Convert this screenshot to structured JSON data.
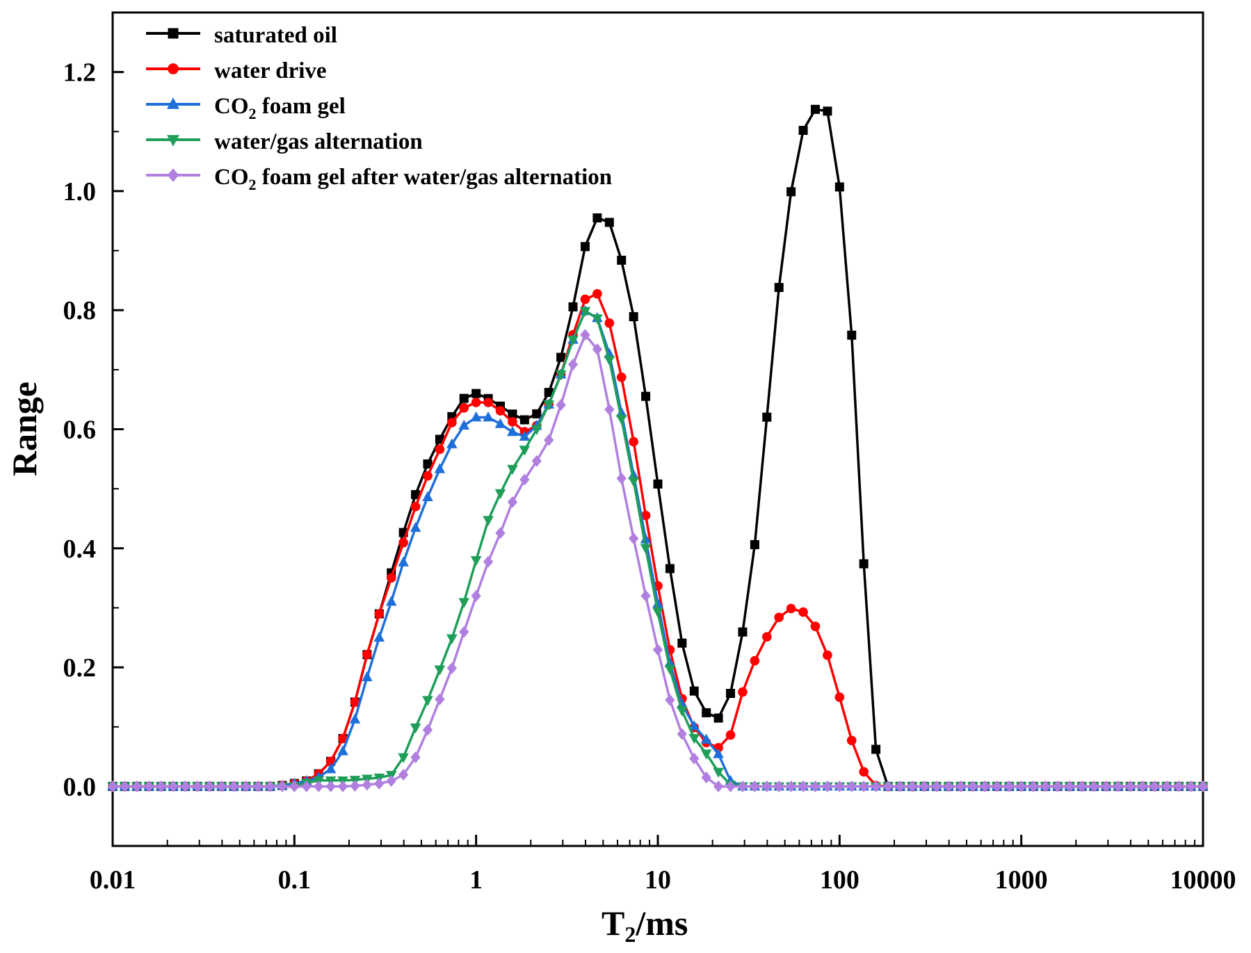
{
  "chart_data": {
    "type": "line",
    "title": "",
    "xlabel": "T2/ms",
    "xlabel_main": "T",
    "xlabel_sub": "2",
    "xlabel_rest": "/ms",
    "ylabel": "Range",
    "xscale": "log",
    "xlim": [
      0.01,
      10000
    ],
    "ylim": [
      -0.1,
      1.3
    ],
    "x_ticks": [
      0.01,
      0.1,
      1,
      10,
      100,
      1000,
      10000
    ],
    "x_tick_labels": [
      "0.01",
      "0.1",
      "1",
      "10",
      "100",
      "1000",
      "10000"
    ],
    "y_ticks": [
      0.0,
      0.2,
      0.4,
      0.6,
      0.8,
      1.0,
      1.2
    ],
    "y_tick_labels": [
      "0.0",
      "0.2",
      "0.4",
      "0.6",
      "0.8",
      "1.0",
      "1.2"
    ],
    "legend_position": "top-left",
    "series": [
      {
        "name": "saturated oil",
        "legend_main": "saturated oil",
        "legend_sub": "",
        "legend_rest": "",
        "color": "#000000",
        "marker": "square",
        "points": [
          [
            0.08,
            0.0
          ],
          [
            0.1,
            0.005
          ],
          [
            0.12,
            0.01
          ],
          [
            0.15,
            0.03
          ],
          [
            0.18,
            0.07
          ],
          [
            0.22,
            0.15
          ],
          [
            0.26,
            0.24
          ],
          [
            0.3,
            0.3
          ],
          [
            0.35,
            0.37
          ],
          [
            0.42,
            0.45
          ],
          [
            0.5,
            0.52
          ],
          [
            0.6,
            0.57
          ],
          [
            0.7,
            0.61
          ],
          [
            0.8,
            0.64
          ],
          [
            0.9,
            0.66
          ],
          [
            1.0,
            0.66
          ],
          [
            1.2,
            0.65
          ],
          [
            1.5,
            0.63
          ],
          [
            1.8,
            0.615
          ],
          [
            2.1,
            0.62
          ],
          [
            2.5,
            0.66
          ],
          [
            3.0,
            0.73
          ],
          [
            3.5,
            0.82
          ],
          [
            4.0,
            0.91
          ],
          [
            4.6,
            0.955
          ],
          [
            5.3,
            0.955
          ],
          [
            6.0,
            0.91
          ],
          [
            7.0,
            0.83
          ],
          [
            8.0,
            0.72
          ],
          [
            9.2,
            0.59
          ],
          [
            10.5,
            0.46
          ],
          [
            12.0,
            0.34
          ],
          [
            13.5,
            0.245
          ],
          [
            15.0,
            0.18
          ],
          [
            17.0,
            0.135
          ],
          [
            19.0,
            0.12
          ],
          [
            21.0,
            0.11
          ],
          [
            24.0,
            0.135
          ],
          [
            27.0,
            0.19
          ],
          [
            30.0,
            0.28
          ],
          [
            34.0,
            0.4
          ],
          [
            38.0,
            0.56
          ],
          [
            43.0,
            0.72
          ],
          [
            48.0,
            0.89
          ],
          [
            56.0,
            1.03
          ],
          [
            65.0,
            1.12
          ],
          [
            75.0,
            1.14
          ],
          [
            85.0,
            1.14
          ],
          [
            95.0,
            1.07
          ],
          [
            110.0,
            0.89
          ],
          [
            125.0,
            0.6
          ],
          [
            145.0,
            0.2
          ],
          [
            165.0,
            0.0
          ],
          [
            10000,
            0.0
          ]
        ]
      },
      {
        "name": "water drive",
        "legend_main": "water drive",
        "legend_sub": "",
        "legend_rest": "",
        "color": "#ff0000",
        "marker": "circle",
        "points": [
          [
            0.08,
            0.0
          ],
          [
            0.1,
            0.005
          ],
          [
            0.12,
            0.01
          ],
          [
            0.15,
            0.03
          ],
          [
            0.18,
            0.07
          ],
          [
            0.22,
            0.15
          ],
          [
            0.26,
            0.24
          ],
          [
            0.3,
            0.3
          ],
          [
            0.35,
            0.36
          ],
          [
            0.42,
            0.43
          ],
          [
            0.5,
            0.5
          ],
          [
            0.6,
            0.55
          ],
          [
            0.7,
            0.6
          ],
          [
            0.8,
            0.63
          ],
          [
            0.9,
            0.64
          ],
          [
            1.0,
            0.645
          ],
          [
            1.2,
            0.645
          ],
          [
            1.5,
            0.62
          ],
          [
            1.8,
            0.595
          ],
          [
            2.1,
            0.6
          ],
          [
            2.5,
            0.64
          ],
          [
            3.0,
            0.7
          ],
          [
            3.5,
            0.77
          ],
          [
            4.0,
            0.82
          ],
          [
            4.6,
            0.83
          ],
          [
            5.3,
            0.79
          ],
          [
            6.0,
            0.72
          ],
          [
            7.0,
            0.62
          ],
          [
            8.0,
            0.51
          ],
          [
            9.2,
            0.4
          ],
          [
            10.5,
            0.3
          ],
          [
            12.0,
            0.21
          ],
          [
            13.5,
            0.15
          ],
          [
            15.0,
            0.11
          ],
          [
            17.0,
            0.085
          ],
          [
            19.0,
            0.07
          ],
          [
            21.0,
            0.065
          ],
          [
            24.0,
            0.065
          ],
          [
            27.0,
            0.12
          ],
          [
            30.0,
            0.17
          ],
          [
            34.0,
            0.21
          ],
          [
            38.0,
            0.24
          ],
          [
            43.0,
            0.27
          ],
          [
            48.0,
            0.29
          ],
          [
            55.0,
            0.3
          ],
          [
            62.0,
            0.295
          ],
          [
            70.0,
            0.28
          ],
          [
            80.0,
            0.25
          ],
          [
            90.0,
            0.2
          ],
          [
            100.0,
            0.15
          ],
          [
            110.0,
            0.1
          ],
          [
            125.0,
            0.05
          ],
          [
            145.0,
            0.005
          ],
          [
            165.0,
            0.0
          ],
          [
            10000,
            0.0
          ]
        ]
      },
      {
        "name": "CO2 foam gel",
        "legend_main": "CO",
        "legend_sub": "2",
        "legend_rest": " foam gel",
        "color": "#1f6fd8",
        "marker": "triangle-up",
        "points": [
          [
            0.08,
            0.0
          ],
          [
            0.1,
            0.005
          ],
          [
            0.12,
            0.01
          ],
          [
            0.15,
            0.02
          ],
          [
            0.18,
            0.05
          ],
          [
            0.22,
            0.12
          ],
          [
            0.26,
            0.2
          ],
          [
            0.3,
            0.26
          ],
          [
            0.35,
            0.32
          ],
          [
            0.42,
            0.4
          ],
          [
            0.5,
            0.46
          ],
          [
            0.6,
            0.52
          ],
          [
            0.7,
            0.56
          ],
          [
            0.8,
            0.6
          ],
          [
            1.0,
            0.62
          ],
          [
            1.2,
            0.62
          ],
          [
            1.5,
            0.6
          ],
          [
            1.8,
            0.585
          ],
          [
            2.1,
            0.6
          ],
          [
            2.5,
            0.64
          ],
          [
            3.0,
            0.7
          ],
          [
            3.5,
            0.76
          ],
          [
            4.0,
            0.8
          ],
          [
            4.6,
            0.79
          ],
          [
            5.3,
            0.74
          ],
          [
            6.0,
            0.66
          ],
          [
            7.0,
            0.56
          ],
          [
            8.0,
            0.46
          ],
          [
            9.2,
            0.37
          ],
          [
            10.5,
            0.27
          ],
          [
            12.0,
            0.19
          ],
          [
            13.5,
            0.14
          ],
          [
            15.0,
            0.11
          ],
          [
            17.0,
            0.09
          ],
          [
            19.0,
            0.075
          ],
          [
            21.0,
            0.06
          ],
          [
            23.0,
            0.04
          ],
          [
            25.0,
            0.01
          ],
          [
            28.0,
            0.0
          ],
          [
            10000,
            0.0
          ]
        ]
      },
      {
        "name": "water/gas alternation",
        "legend_main": "water/gas alternation",
        "legend_sub": "",
        "legend_rest": "",
        "color": "#1f9e5a",
        "marker": "triangle-down",
        "points": [
          [
            0.1,
            0.0
          ],
          [
            0.13,
            0.01
          ],
          [
            0.2,
            0.01
          ],
          [
            0.3,
            0.015
          ],
          [
            0.35,
            0.02
          ],
          [
            0.4,
            0.05
          ],
          [
            0.45,
            0.09
          ],
          [
            0.5,
            0.12
          ],
          [
            0.55,
            0.15
          ],
          [
            0.6,
            0.18
          ],
          [
            0.7,
            0.23
          ],
          [
            0.8,
            0.28
          ],
          [
            0.9,
            0.33
          ],
          [
            1.0,
            0.38
          ],
          [
            1.1,
            0.43
          ],
          [
            1.3,
            0.48
          ],
          [
            1.5,
            0.52
          ],
          [
            1.7,
            0.55
          ],
          [
            2.0,
            0.58
          ],
          [
            2.5,
            0.64
          ],
          [
            3.0,
            0.7
          ],
          [
            3.5,
            0.76
          ],
          [
            4.0,
            0.8
          ],
          [
            4.6,
            0.79
          ],
          [
            5.3,
            0.73
          ],
          [
            6.0,
            0.65
          ],
          [
            7.0,
            0.55
          ],
          [
            8.0,
            0.45
          ],
          [
            9.2,
            0.35
          ],
          [
            10.5,
            0.26
          ],
          [
            12.0,
            0.18
          ],
          [
            13.5,
            0.13
          ],
          [
            15.0,
            0.09
          ],
          [
            17.0,
            0.07
          ],
          [
            19.0,
            0.05
          ],
          [
            21.0,
            0.03
          ],
          [
            23.0,
            0.01
          ],
          [
            26.0,
            0.0
          ],
          [
            10000,
            0.0
          ]
        ]
      },
      {
        "name": "CO2 foam gel after water/gas alternation",
        "legend_main": "CO",
        "legend_sub": "2",
        "legend_rest": " foam gel after water/gas alternation",
        "color": "#b07fe0",
        "marker": "diamond",
        "points": [
          [
            0.2,
            0.0
          ],
          [
            0.3,
            0.005
          ],
          [
            0.35,
            0.01
          ],
          [
            0.4,
            0.02
          ],
          [
            0.45,
            0.04
          ],
          [
            0.5,
            0.07
          ],
          [
            0.55,
            0.1
          ],
          [
            0.6,
            0.13
          ],
          [
            0.7,
            0.18
          ],
          [
            0.8,
            0.23
          ],
          [
            0.9,
            0.28
          ],
          [
            1.0,
            0.32
          ],
          [
            1.1,
            0.36
          ],
          [
            1.3,
            0.41
          ],
          [
            1.5,
            0.46
          ],
          [
            1.7,
            0.5
          ],
          [
            2.0,
            0.53
          ],
          [
            2.5,
            0.58
          ],
          [
            3.0,
            0.65
          ],
          [
            3.5,
            0.72
          ],
          [
            4.0,
            0.76
          ],
          [
            4.6,
            0.74
          ],
          [
            5.3,
            0.65
          ],
          [
            6.0,
            0.55
          ],
          [
            7.0,
            0.45
          ],
          [
            8.0,
            0.36
          ],
          [
            9.2,
            0.28
          ],
          [
            10.5,
            0.2
          ],
          [
            12.0,
            0.13
          ],
          [
            13.5,
            0.09
          ],
          [
            15.0,
            0.06
          ],
          [
            17.0,
            0.03
          ],
          [
            19.0,
            0.01
          ],
          [
            21.0,
            0.0
          ],
          [
            10000,
            0.0
          ]
        ]
      }
    ]
  }
}
